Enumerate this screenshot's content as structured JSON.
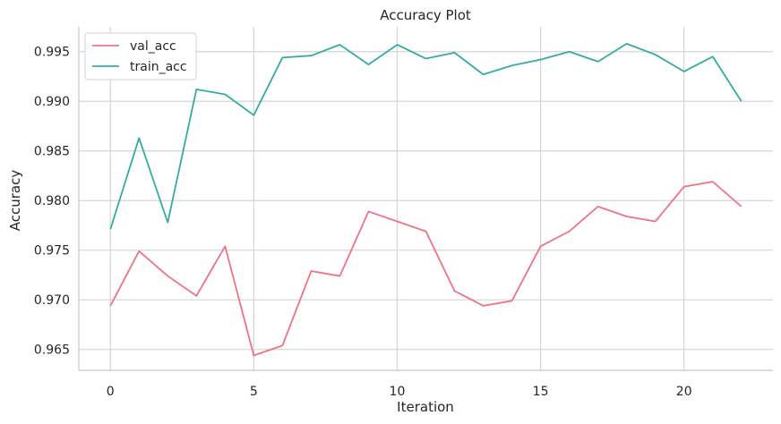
{
  "chart_data": {
    "type": "line",
    "title": "Accuracy Plot",
    "xlabel": "Iteration",
    "ylabel": "Accuracy",
    "x": [
      0,
      1,
      2,
      3,
      4,
      5,
      6,
      7,
      8,
      9,
      10,
      11,
      12,
      13,
      14,
      15,
      16,
      17,
      18,
      19,
      20,
      21,
      22
    ],
    "xlim": [
      -1.1,
      23.1
    ],
    "ylim": [
      0.9629,
      0.9975
    ],
    "x_ticks": [
      0,
      5,
      10,
      15,
      20
    ],
    "x_tick_labels": [
      "0",
      "5",
      "10",
      "15",
      "20"
    ],
    "y_ticks": [
      0.965,
      0.97,
      0.975,
      0.98,
      0.985,
      0.99,
      0.995
    ],
    "y_tick_labels": [
      "0.965",
      "0.970",
      "0.975",
      "0.980",
      "0.985",
      "0.990",
      "0.995"
    ],
    "grid": true,
    "legend_position": "top-left",
    "series": [
      {
        "name": "val_acc",
        "color": "#f07289",
        "values": [
          0.9694,
          0.9749,
          0.9724,
          0.9704,
          0.9754,
          0.9644,
          0.9654,
          0.9729,
          0.9724,
          0.9789,
          0.9779,
          0.9769,
          0.9709,
          0.9694,
          0.9699,
          0.9754,
          0.9769,
          0.9794,
          0.9784,
          0.9779,
          0.9814,
          0.9819,
          0.9794
        ]
      },
      {
        "name": "train_acc",
        "color": "#36aba2",
        "values": [
          0.9771,
          0.9863,
          0.9778,
          0.9912,
          0.9907,
          0.9886,
          0.9944,
          0.9946,
          0.9957,
          0.9937,
          0.9957,
          0.9943,
          0.9949,
          0.9927,
          0.9936,
          0.9942,
          0.995,
          0.994,
          0.9958,
          0.9947,
          0.993,
          0.9945,
          0.99
        ]
      }
    ]
  }
}
